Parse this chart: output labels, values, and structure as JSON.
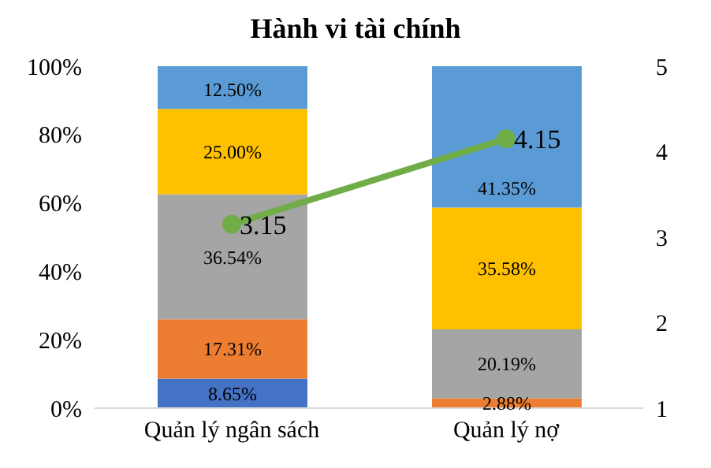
{
  "chart_data": {
    "type": "bar",
    "title": "Hành vi tài chính",
    "stacked": true,
    "categories": [
      "Quản lý ngân sách",
      "Quản lý nợ"
    ],
    "series": [
      {
        "color": "#4472c4",
        "values": [
          8.65,
          null
        ],
        "value_labels": [
          "8.65%",
          null
        ]
      },
      {
        "color": "#ed7d31",
        "values": [
          17.31,
          2.88
        ],
        "value_labels": [
          "17.31%",
          "2.88%"
        ]
      },
      {
        "color": "#a5a5a5",
        "values": [
          36.54,
          20.19
        ],
        "value_labels": [
          "36.54%",
          "20.19%"
        ]
      },
      {
        "color": "#ffc000",
        "values": [
          25.0,
          35.58
        ],
        "value_labels": [
          "25.00%",
          "35.58%"
        ]
      },
      {
        "color": "#5b9bd5",
        "values": [
          12.5,
          41.35
        ],
        "value_labels": [
          "12.50%",
          "41.35%"
        ]
      },
      {
        "type": "line",
        "axis": "y2",
        "color": "#70ad47",
        "values": [
          3.15,
          4.15
        ],
        "value_labels": [
          "3.15",
          "4.15"
        ],
        "marker": "circle"
      }
    ],
    "ylim": [
      0,
      100
    ],
    "yticks": [
      {
        "value": 0,
        "label": "0%"
      },
      {
        "value": 20,
        "label": "20%"
      },
      {
        "value": 40,
        "label": "40%"
      },
      {
        "value": 60,
        "label": "60%"
      },
      {
        "value": 80,
        "label": "80%"
      },
      {
        "value": 100,
        "label": "100%"
      }
    ],
    "y2lim": [
      1,
      5
    ],
    "y2ticks": [
      1,
      2,
      3,
      4,
      5
    ],
    "grid": false,
    "legend": false
  }
}
